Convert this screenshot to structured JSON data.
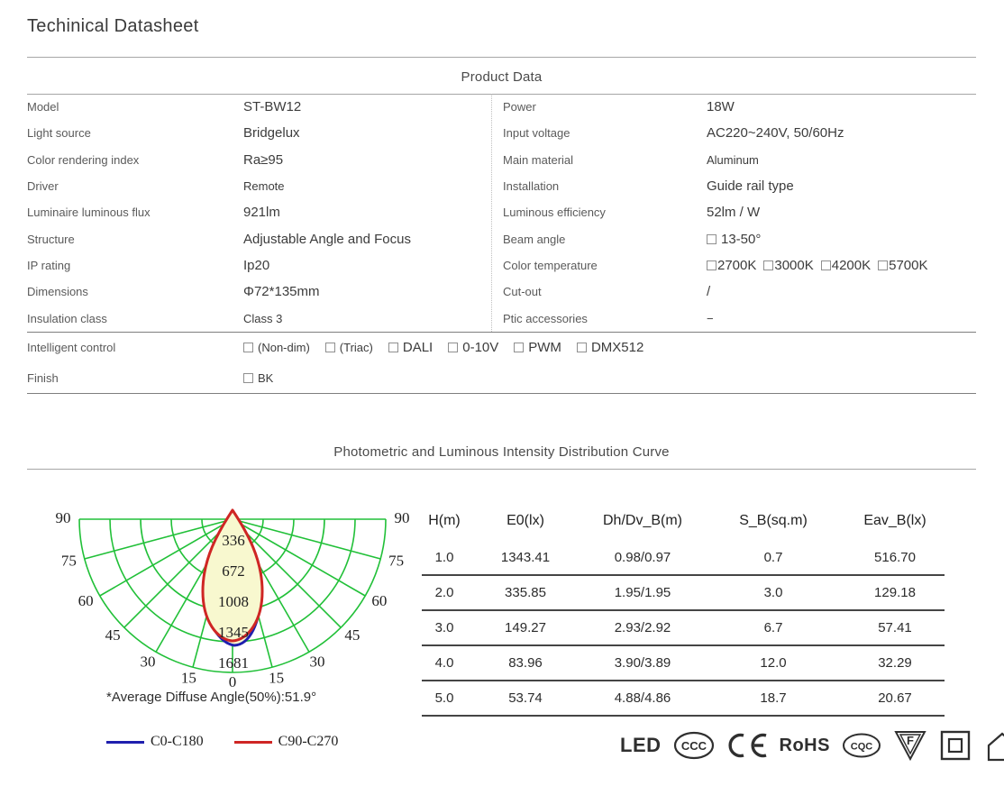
{
  "page": {
    "title": "Techinical Datasheet"
  },
  "product_data": {
    "section_title": "Product Data",
    "left_rows": [
      {
        "label": "Model",
        "value": "ST-BW12"
      },
      {
        "label": "Light source",
        "value": "Bridgelux"
      },
      {
        "label": "Color rendering index",
        "value": "Ra≥95"
      },
      {
        "label": "Driver",
        "value": "Remote",
        "small": true
      },
      {
        "label": "Luminaire luminous flux",
        "value": "921lm"
      },
      {
        "label": "Structure",
        "value": "Adjustable Angle and Focus"
      },
      {
        "label": "IP  rating",
        "value": "Ip20"
      },
      {
        "label": "Dimensions",
        "value": "Φ72*135mm"
      },
      {
        "label": "Insulation class",
        "value": "Class 3",
        "small": true
      }
    ],
    "right_rows": [
      {
        "label": "Power",
        "value": "18W"
      },
      {
        "label": "Input voltage",
        "value": "AC220~240V, 50/60Hz"
      },
      {
        "label": "Main material",
        "value": "Aluminum",
        "small": true
      },
      {
        "label": "Installation",
        "value": "Guide rail type"
      },
      {
        "label": "Luminous efficiency",
        "value": "52lm / W"
      },
      {
        "label": "Beam angle",
        "value": "13-50°",
        "checkbox": true
      },
      {
        "label": "Color temperature",
        "tight": true,
        "options": [
          {
            "text": "2700K"
          },
          {
            "text": "3000K"
          },
          {
            "text": "4200K"
          },
          {
            "text": "5700K"
          }
        ]
      },
      {
        "label": "Cut-out",
        "value": "/"
      },
      {
        "label": "Ptic accessories",
        "value": "−",
        "small": true
      }
    ],
    "control_rows": [
      {
        "label": "Intelligent control",
        "options": [
          {
            "text": "(Non-dim)",
            "small": true
          },
          {
            "text": "(Triac)",
            "small": true
          },
          {
            "text": "DALI"
          },
          {
            "text": "0-10V"
          },
          {
            "text": "PWM"
          },
          {
            "text": "DMX512"
          }
        ]
      },
      {
        "label": "Finish",
        "options": [
          {
            "text": "BK",
            "small": true
          }
        ]
      }
    ]
  },
  "photometric": {
    "section_title": "Photometric and Luminous Intensity Distribution Curve",
    "caption": "*Average Diffuse Angle(50%):51.9°",
    "legend": [
      {
        "label": "C0-C180",
        "color": "#1f1fae"
      },
      {
        "label": "C90-C270",
        "color": "#cf2624"
      }
    ]
  },
  "chart_data": {
    "type": "line",
    "subtype": "polar-photometric-distribution",
    "title": "",
    "angle_ticks_deg": [
      0,
      15,
      30,
      45,
      60,
      75,
      90
    ],
    "angle_tick_mirrored": true,
    "radial_ticks_cd": [
      336,
      672,
      1008,
      1345,
      1681
    ],
    "radial_max": 1681,
    "grid_color": "#21c038",
    "fill_color": "#f8f8cf",
    "series": [
      {
        "name": "C0-C180",
        "color": "#1f1fae",
        "points_deg_cd": [
          [
            0,
            1343
          ],
          [
            10,
            1280
          ],
          [
            20,
            1000
          ],
          [
            26,
            672
          ],
          [
            35,
            300
          ],
          [
            45,
            80
          ],
          [
            60,
            15
          ],
          [
            90,
            0
          ]
        ]
      },
      {
        "name": "C90-C270",
        "color": "#cf2624",
        "points_deg_cd": [
          [
            0,
            1343
          ],
          [
            10,
            1290
          ],
          [
            20,
            1010
          ],
          [
            26,
            672
          ],
          [
            35,
            290
          ],
          [
            45,
            75
          ],
          [
            60,
            12
          ],
          [
            90,
            0
          ]
        ]
      }
    ],
    "annotation": "*Average Diffuse Angle(50%):51.9°",
    "legend_position": "bottom-left",
    "grid": true
  },
  "illuminance_table": {
    "headers": [
      "H(m)",
      "E0(lx)",
      "Dh/Dv_B(m)",
      "S_B(sq.m)",
      "Eav_B(lx)"
    ],
    "rows": [
      [
        "1.0",
        "1343.41",
        "0.98/0.97",
        "0.7",
        "516.70"
      ],
      [
        "2.0",
        "335.85",
        "1.95/1.95",
        "3.0",
        "129.18"
      ],
      [
        "3.0",
        "149.27",
        "2.93/2.92",
        "6.7",
        "57.41"
      ],
      [
        "4.0",
        "83.96",
        "3.90/3.89",
        "12.0",
        "32.29"
      ],
      [
        "5.0",
        "53.74",
        "4.88/4.86",
        "18.7",
        "20.67"
      ]
    ]
  },
  "certifications": {
    "led": "LED",
    "ccc": "CCC",
    "ce": "CE",
    "rohs": "RoHS",
    "cqc": "CQC",
    "f": "F",
    "items": [
      "LED",
      "CCC-mark",
      "CE-mark",
      "RoHS",
      "CQC-mark",
      "F-triangle",
      "double-insulation",
      "indoor-use"
    ]
  },
  "colors": {
    "grid_green": "#21c038",
    "curve_red": "#cf2624",
    "curve_blue": "#1f1fae",
    "beam_fill": "#f8f8cf",
    "rule_light": "#a6a6a6",
    "rule_dark": "#7e7e7e"
  }
}
